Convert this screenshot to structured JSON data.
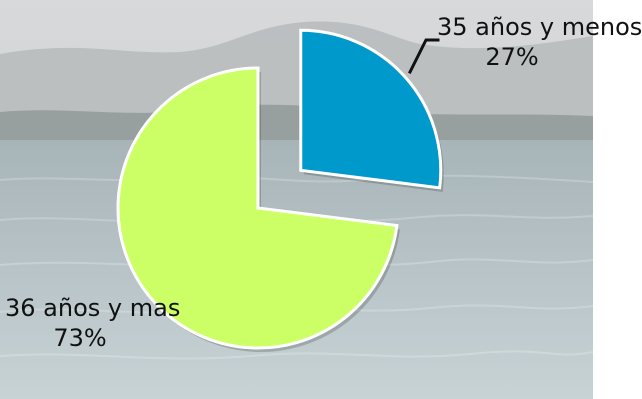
{
  "chart_data": {
    "type": "pie",
    "categories": [
      "35 años y menos",
      "36 años y mas"
    ],
    "values": [
      27,
      73
    ],
    "value_labels": [
      "27%",
      "73%"
    ],
    "colors": [
      "#0099cc",
      "#ccff66"
    ],
    "exploded": "35 años y menos"
  }
}
